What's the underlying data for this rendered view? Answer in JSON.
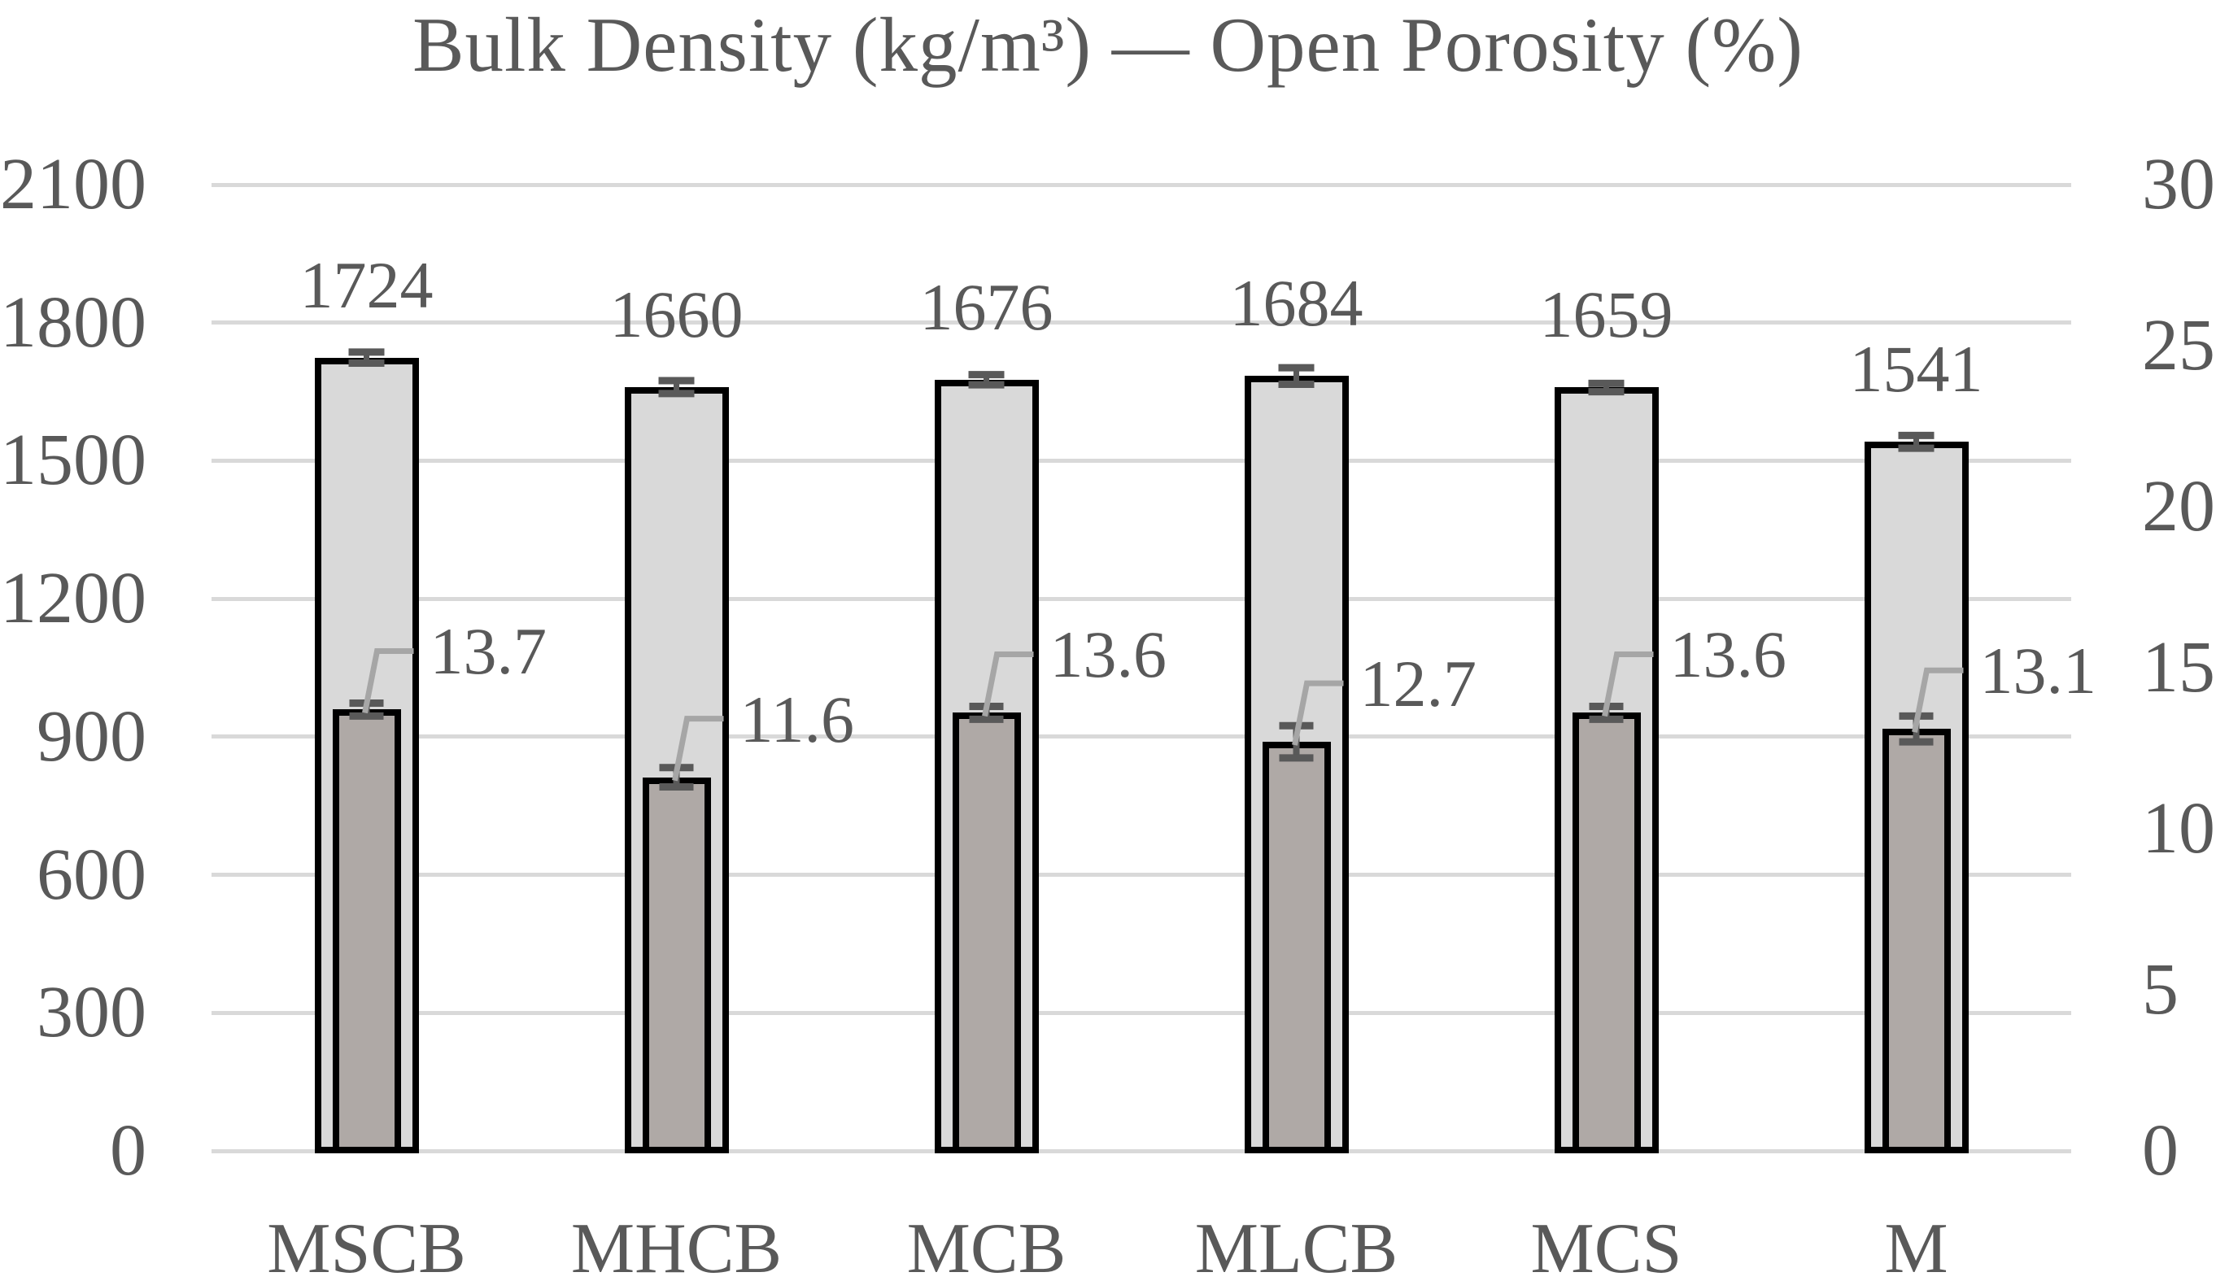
{
  "colors": {
    "background": "#ffffff",
    "text": "#595959",
    "gridline": "#d9d9d9",
    "bar_border": "#000000",
    "density_fill": "#d9d9d9",
    "porosity_fill": "#afa9a6",
    "error_bar": "#595959",
    "leader_line": "#a6a6a6"
  },
  "chart_data": {
    "type": "bar",
    "title": "Bulk Density (kg/m³) — Open Porosity (%)",
    "categories": [
      "MSCB",
      "MHCB",
      "MCB",
      "MLCB",
      "MCS",
      "M"
    ],
    "series": [
      {
        "name": "Bulk Density (kg/m³)",
        "axis": "left",
        "values": [
          1724,
          1660,
          1676,
          1684,
          1659,
          1541
        ],
        "labels": [
          "1724",
          "1660",
          "1676",
          "1684",
          "1659",
          "1541"
        ],
        "error_approx": [
          12,
          14,
          11,
          18,
          9,
          14
        ]
      },
      {
        "name": "Open Porosity (%)",
        "axis": "right",
        "values": [
          13.7,
          11.6,
          13.6,
          12.7,
          13.6,
          13.1
        ],
        "labels": [
          "13.7",
          "11.6",
          "13.6",
          "12.7",
          "13.6",
          "13.1"
        ],
        "error_approx": [
          0.2,
          0.3,
          0.2,
          0.5,
          0.2,
          0.4
        ]
      }
    ],
    "left_axis": {
      "min": 0,
      "max": 2100,
      "step": 300,
      "ticks": [
        0,
        300,
        600,
        900,
        1200,
        1500,
        1800,
        2100
      ]
    },
    "right_axis": {
      "min": 0,
      "max": 30,
      "step": 5,
      "ticks": [
        0,
        5,
        10,
        15,
        20,
        25,
        30
      ]
    },
    "grid": true,
    "legend": "none",
    "data_labels": true
  }
}
